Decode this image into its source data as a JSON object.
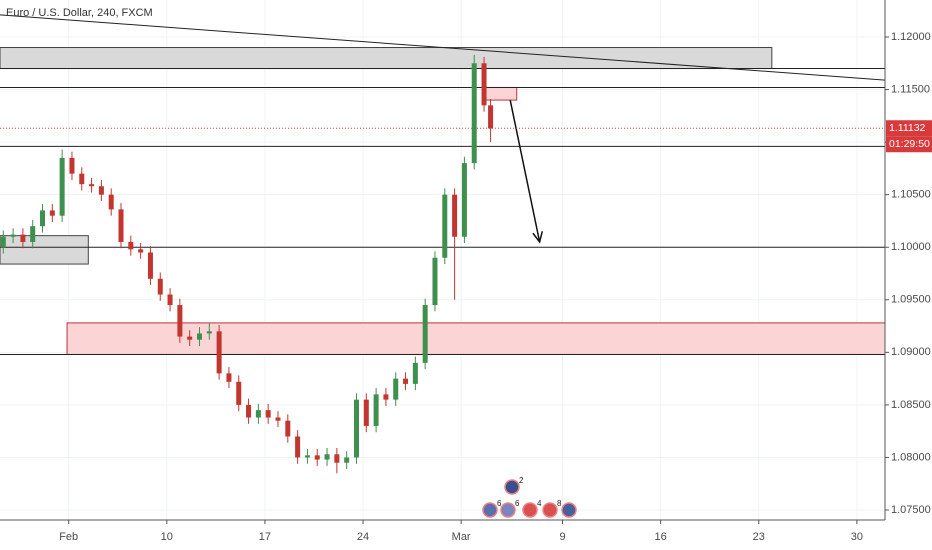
{
  "chart_data": {
    "type": "candlestick",
    "title": "Euro / U.S. Dollar, 240, FXCM",
    "x": [
      1,
      4,
      7,
      10,
      13,
      16,
      19,
      22,
      25,
      28,
      31,
      34,
      37,
      40,
      43,
      46,
      49,
      52,
      55,
      58,
      61,
      64,
      67,
      70,
      73,
      76,
      79,
      82,
      85,
      88,
      91,
      94,
      97,
      100,
      103,
      106,
      109,
      112,
      115,
      118,
      121,
      124,
      127,
      130,
      133,
      136,
      139,
      142,
      145,
      148,
      150
    ],
    "open": [
      1.1,
      1.101,
      1.1012,
      1.1005,
      1.102,
      1.1035,
      1.103,
      1.1085,
      1.107,
      1.106,
      1.1058,
      1.105,
      1.1036,
      1.1005,
      1.0998,
      1.0995,
      1.097,
      1.0955,
      1.0945,
      1.0915,
      1.0912,
      1.0918,
      1.092,
      1.088,
      1.0872,
      1.085,
      1.0838,
      1.0845,
      1.0838,
      1.0835,
      1.082,
      1.08,
      1.0802,
      1.0798,
      1.0803,
      1.0795,
      1.08,
      1.0855,
      1.083,
      1.086,
      1.0855,
      1.0875,
      1.087,
      1.089,
      1.0945,
      1.099,
      1.105,
      1.101,
      1.108,
      1.1175,
      1.1135
    ],
    "high": [
      1.1016,
      1.1018,
      1.1018,
      1.1026,
      1.1041,
      1.1041,
      1.1093,
      1.1091,
      1.1076,
      1.1066,
      1.1064,
      1.1056,
      1.1042,
      1.1011,
      1.1004,
      1.1001,
      1.0976,
      1.0961,
      1.0951,
      1.0921,
      1.0924,
      1.0928,
      1.0926,
      1.0886,
      1.0878,
      1.0856,
      1.0851,
      1.0851,
      1.0844,
      1.0841,
      1.0826,
      1.0808,
      1.0808,
      1.0809,
      1.0809,
      1.0806,
      1.0861,
      1.0861,
      1.0866,
      1.0866,
      1.0881,
      1.0881,
      1.0896,
      1.0951,
      1.0996,
      1.1056,
      1.1056,
      1.1086,
      1.1183,
      1.1181,
      1.1141
    ],
    "low": [
      1.0994,
      1.1004,
      1.0999,
      1.0999,
      1.1014,
      1.1024,
      1.1024,
      1.1064,
      1.1054,
      1.1052,
      1.1044,
      1.103,
      1.0999,
      1.0992,
      1.0989,
      1.0964,
      1.0949,
      1.0939,
      1.0909,
      1.0906,
      1.0906,
      1.0912,
      1.0874,
      1.0866,
      1.0844,
      1.0832,
      1.0832,
      1.0832,
      1.0829,
      1.0814,
      1.0794,
      1.0794,
      1.0792,
      1.0792,
      1.0785,
      1.0789,
      1.0794,
      1.0824,
      1.0824,
      1.0849,
      1.0849,
      1.0864,
      1.0864,
      1.0884,
      1.0939,
      1.0984,
      1.095,
      1.1004,
      1.1074,
      1.1129,
      1.11
    ],
    "close": [
      1.101,
      1.1012,
      1.1005,
      1.102,
      1.1035,
      1.103,
      1.1085,
      1.107,
      1.106,
      1.1058,
      1.105,
      1.1036,
      1.1005,
      1.0998,
      1.0995,
      1.097,
      1.0955,
      1.0945,
      1.0915,
      1.0912,
      1.0918,
      1.092,
      1.088,
      1.0872,
      1.085,
      1.0838,
      1.0845,
      1.0838,
      1.0835,
      1.082,
      1.08,
      1.0802,
      1.0798,
      1.0803,
      1.0795,
      1.08,
      1.0855,
      1.083,
      1.086,
      1.0855,
      1.0875,
      1.087,
      1.089,
      1.0945,
      1.099,
      1.105,
      1.101,
      1.108,
      1.1175,
      1.1135,
      1.1113
    ],
    "up_color": "#3f8f4f",
    "down_color": "#c2362f",
    "xlim": [
      0,
      270.6
    ],
    "xticks": [
      {
        "value": 21,
        "label": "Feb"
      },
      {
        "value": 51,
        "label": "10"
      },
      {
        "value": 81,
        "label": "17"
      },
      {
        "value": 111,
        "label": "24"
      },
      {
        "value": 141,
        "label": "Mar"
      },
      {
        "value": 172,
        "label": "9"
      },
      {
        "value": 202,
        "label": "16"
      },
      {
        "value": 232,
        "label": "23"
      },
      {
        "value": 262,
        "label": "30"
      }
    ],
    "ylim": [
      1.07405,
      1.12352
    ],
    "yticks": [
      {
        "value": 1.075,
        "label": "1.07500"
      },
      {
        "value": 1.08,
        "label": "1.08000"
      },
      {
        "value": 1.085,
        "label": "1.08500"
      },
      {
        "value": 1.09,
        "label": "1.09000"
      },
      {
        "value": 1.095,
        "label": "1.09500"
      },
      {
        "value": 1.1,
        "label": "1.10000"
      },
      {
        "value": 1.105,
        "label": "1.10500"
      },
      {
        "value": 1.11,
        "label": "1.11000"
      },
      {
        "value": 1.115,
        "label": "1.11500"
      },
      {
        "value": 1.12,
        "label": "1.12000"
      }
    ],
    "grid": true,
    "last_price": 1.11132,
    "countdown": "01:29:50",
    "levels": [
      1.117,
      1.1152,
      1.1096,
      1.1,
      1.0898
    ],
    "zones": [
      {
        "x": [
          0,
          236
        ],
        "y": [
          1.117,
          1.119
        ],
        "color": "#d9d9d9"
      },
      {
        "x": [
          0,
          27
        ],
        "y": [
          1.0984,
          1.1011
        ],
        "color": "#d9d9d9"
      },
      {
        "x": [
          20.5,
          270.6
        ],
        "y": [
          1.0898,
          1.0928
        ],
        "color": "#fbd5d5"
      },
      {
        "x": [
          148,
          158
        ],
        "y": [
          1.114,
          1.1152
        ],
        "color": "#fbd5d5"
      }
    ],
    "trendline": {
      "x": [
        0,
        270.6
      ],
      "y": [
        1.1221,
        1.1159
      ]
    },
    "arrow": {
      "x": [
        156,
        165
      ],
      "y": [
        1.114,
        1.1005
      ]
    },
    "events": [
      "6",
      "2",
      "6",
      "4",
      "8"
    ]
  }
}
